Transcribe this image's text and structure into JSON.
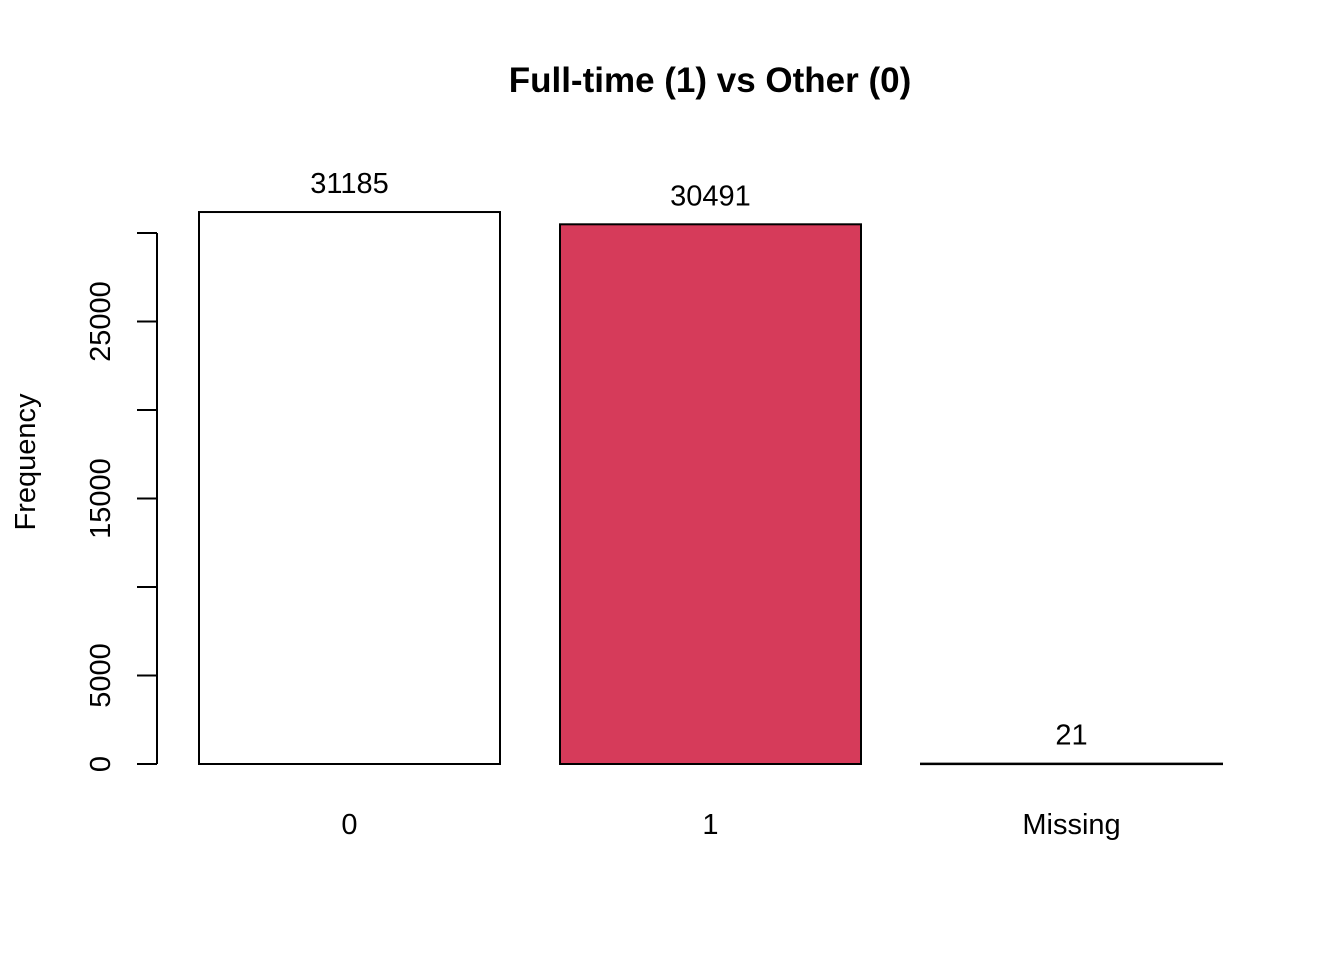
{
  "chart_data": {
    "type": "bar",
    "title": "Full-time (1) vs Other (0)",
    "xlabel": "",
    "ylabel": "Frequency",
    "categories": [
      "0",
      "1",
      "Missing"
    ],
    "values": [
      31185,
      30491,
      21
    ],
    "data_labels": [
      "31185",
      "30491",
      "21"
    ],
    "bar_colors": [
      "#ffffff",
      "#d63b5a",
      "#ffffff"
    ],
    "y_ticks": [
      0,
      5000,
      10000,
      15000,
      20000,
      25000,
      30000
    ],
    "y_tick_labels": [
      "0",
      "5000",
      "",
      "15000",
      "",
      "25000",
      ""
    ],
    "ylim": [
      0,
      31185
    ],
    "grid": false,
    "legend": "none"
  }
}
